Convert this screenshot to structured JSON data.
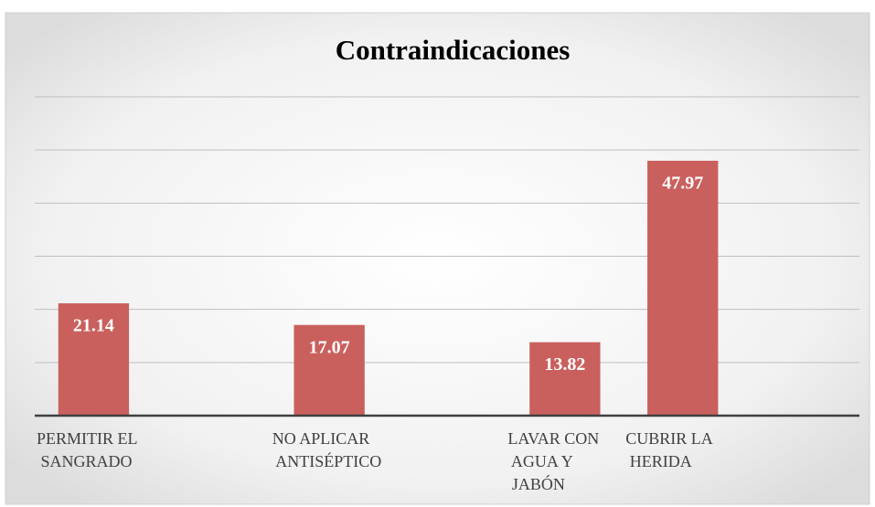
{
  "chart_data": {
    "type": "bar",
    "title": "Contraindicaciones",
    "categories": [
      "PERMITIR EL SANGRADO",
      null,
      "NO APLICAR ANTISÉPTICO",
      null,
      "LAVAR CON AGUA Y JABÓN",
      "CUBRIR LA HERIDA",
      null
    ],
    "values": [
      21.14,
      null,
      17.07,
      null,
      13.82,
      47.97,
      null
    ],
    "color": "#c9605d",
    "ylim": [
      0,
      60
    ],
    "yticks": [
      0,
      10,
      20,
      30,
      40,
      50,
      60
    ],
    "grid": true
  }
}
